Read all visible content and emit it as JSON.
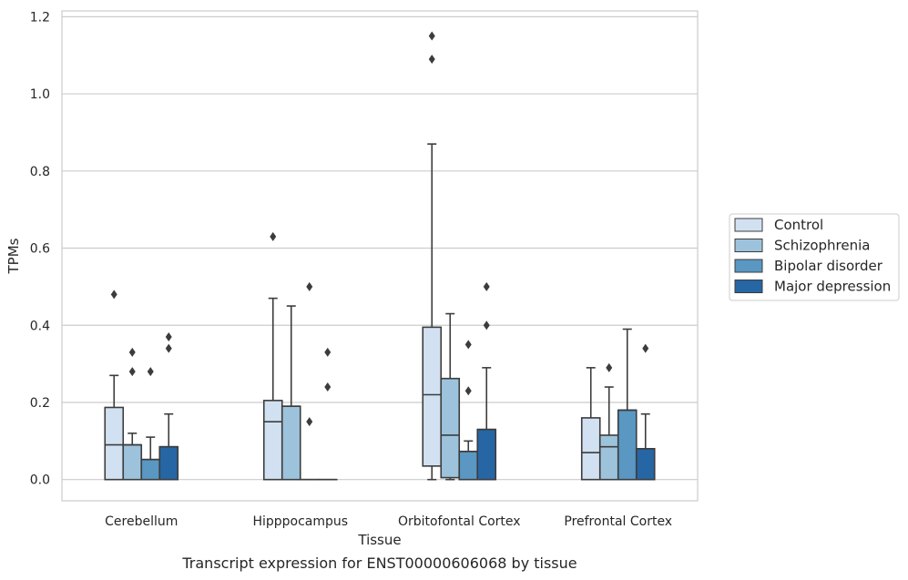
{
  "chart_data": {
    "type": "box",
    "xlabel": "Tissue",
    "ylabel": "TPMs",
    "caption": "Transcript expression for ENST00000606068 by tissue",
    "ylim": [
      -0.055,
      1.215
    ],
    "yticks": [
      "0.0",
      "0.2",
      "0.4",
      "0.6",
      "0.8",
      "1.0",
      "1.2"
    ],
    "ytick_values": [
      0,
      0.2,
      0.4,
      0.6,
      0.8,
      1.0,
      1.2
    ],
    "grid": "horizontal",
    "legend_position": "right",
    "categories": [
      "Cerebellum",
      "Hipppocampus",
      "Orbitofontal Cortex",
      "Prefrontal Cortex"
    ],
    "series": [
      {
        "name": "Control",
        "color": "#d2e1f1",
        "boxes": [
          {
            "whislo": 0,
            "q1": 0,
            "med": 0.09,
            "q3": 0.187,
            "whishi": 0.27,
            "fliers": [
              0.48
            ]
          },
          {
            "whislo": 0,
            "q1": 0,
            "med": 0.15,
            "q3": 0.205,
            "whishi": 0.47,
            "fliers": [
              0.63
            ]
          },
          {
            "whislo": 0,
            "q1": 0.035,
            "med": 0.22,
            "q3": 0.395,
            "whishi": 0.87,
            "fliers": [
              1.09,
              1.15
            ]
          },
          {
            "whislo": 0,
            "q1": 0,
            "med": 0.07,
            "q3": 0.16,
            "whishi": 0.29,
            "fliers": []
          }
        ]
      },
      {
        "name": "Schizophrenia",
        "color": "#9dc3dc",
        "boxes": [
          {
            "whislo": 0,
            "q1": 0,
            "med": 0.09,
            "q3": 0.09,
            "whishi": 0.12,
            "fliers": [
              0.28,
              0.33
            ]
          },
          {
            "whislo": 0,
            "q1": 0,
            "med": 0.19,
            "q3": 0.19,
            "whishi": 0.45,
            "fliers": []
          },
          {
            "whislo": 0,
            "q1": 0.005,
            "med": 0.115,
            "q3": 0.262,
            "whishi": 0.43,
            "fliers": []
          },
          {
            "whislo": 0,
            "q1": 0,
            "med": 0.085,
            "q3": 0.115,
            "whishi": 0.24,
            "fliers": [
              0.29
            ]
          }
        ]
      },
      {
        "name": "Bipolar disorder",
        "color": "#5a97c2",
        "boxes": [
          {
            "whislo": 0,
            "q1": 0,
            "med": 0.052,
            "q3": 0.052,
            "whishi": 0.11,
            "fliers": [
              0.28
            ]
          },
          {
            "whislo": 0,
            "q1": 0,
            "med": 0,
            "q3": 0,
            "whishi": 0,
            "fliers": [
              0.15,
              0.5
            ]
          },
          {
            "whislo": 0,
            "q1": 0,
            "med": 0.073,
            "q3": 0.073,
            "whishi": 0.1,
            "fliers": [
              0.23,
              0.35
            ]
          },
          {
            "whislo": 0,
            "q1": 0,
            "med": 0.18,
            "q3": 0.18,
            "whishi": 0.39,
            "fliers": []
          }
        ]
      },
      {
        "name": "Major depression",
        "color": "#2666a4",
        "boxes": [
          {
            "whislo": 0,
            "q1": 0,
            "med": 0.085,
            "q3": 0.085,
            "whishi": 0.17,
            "fliers": [
              0.34,
              0.37
            ]
          },
          {
            "whislo": 0,
            "q1": 0,
            "med": 0,
            "q3": 0,
            "whishi": 0,
            "fliers": [
              0.24,
              0.33
            ]
          },
          {
            "whislo": 0,
            "q1": 0,
            "med": 0.13,
            "q3": 0.13,
            "whishi": 0.29,
            "fliers": [
              0.4,
              0.5
            ]
          },
          {
            "whislo": 0,
            "q1": 0,
            "med": 0.08,
            "q3": 0.08,
            "whishi": 0.17,
            "fliers": [
              0.34
            ]
          }
        ]
      }
    ]
  }
}
